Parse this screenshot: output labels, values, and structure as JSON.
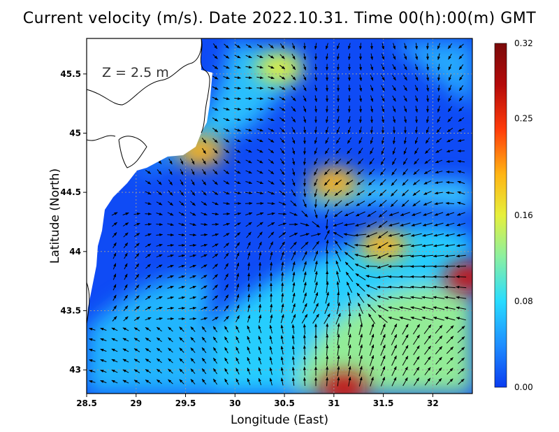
{
  "figure": {
    "title": "Current velocity (m/s). Date 2022.10.31. Time 00(h):00(m) GMT",
    "depth_label": "Z = 2.5 m"
  },
  "chart_data": {
    "type": "heatmap",
    "title": "Current velocity (m/s). Date 2022.10.31. Time 00(h):00(m) GMT",
    "xlabel": "Longitude (East)",
    "ylabel": "Latitude (North)",
    "xlim": [
      28.5,
      32.4
    ],
    "ylim": [
      42.8,
      45.8
    ],
    "x_ticks": [
      "28.5",
      "29",
      "29.5",
      "30",
      "30.5",
      "31",
      "31.5",
      "32"
    ],
    "y_ticks": [
      "43",
      "43.5",
      "44",
      "44.5",
      "45",
      "45.5"
    ],
    "grid": true,
    "colorbar": {
      "label_values": [
        "0.32",
        "0.25",
        "0.16",
        "0.08",
        "0.00"
      ],
      "range": [
        0.0,
        0.32
      ],
      "colors": [
        "#0a3cf0",
        "#1e8cff",
        "#28dcff",
        "#8cf0a0",
        "#e6f03c",
        "#ffb414",
        "#ff3c0a",
        "#b40a0a",
        "#7a0a0a"
      ]
    },
    "speed_maxima": [
      {
        "lon": 32.35,
        "lat": 43.78,
        "speed": 0.32
      },
      {
        "lon": 31.1,
        "lat": 42.85,
        "speed": 0.31
      },
      {
        "lon": 31.5,
        "lat": 44.05,
        "speed": 0.23
      },
      {
        "lon": 29.65,
        "lat": 44.85,
        "speed": 0.24
      },
      {
        "lon": 31.0,
        "lat": 44.58,
        "speed": 0.22
      },
      {
        "lon": 30.45,
        "lat": 45.55,
        "speed": 0.21
      }
    ]
  }
}
